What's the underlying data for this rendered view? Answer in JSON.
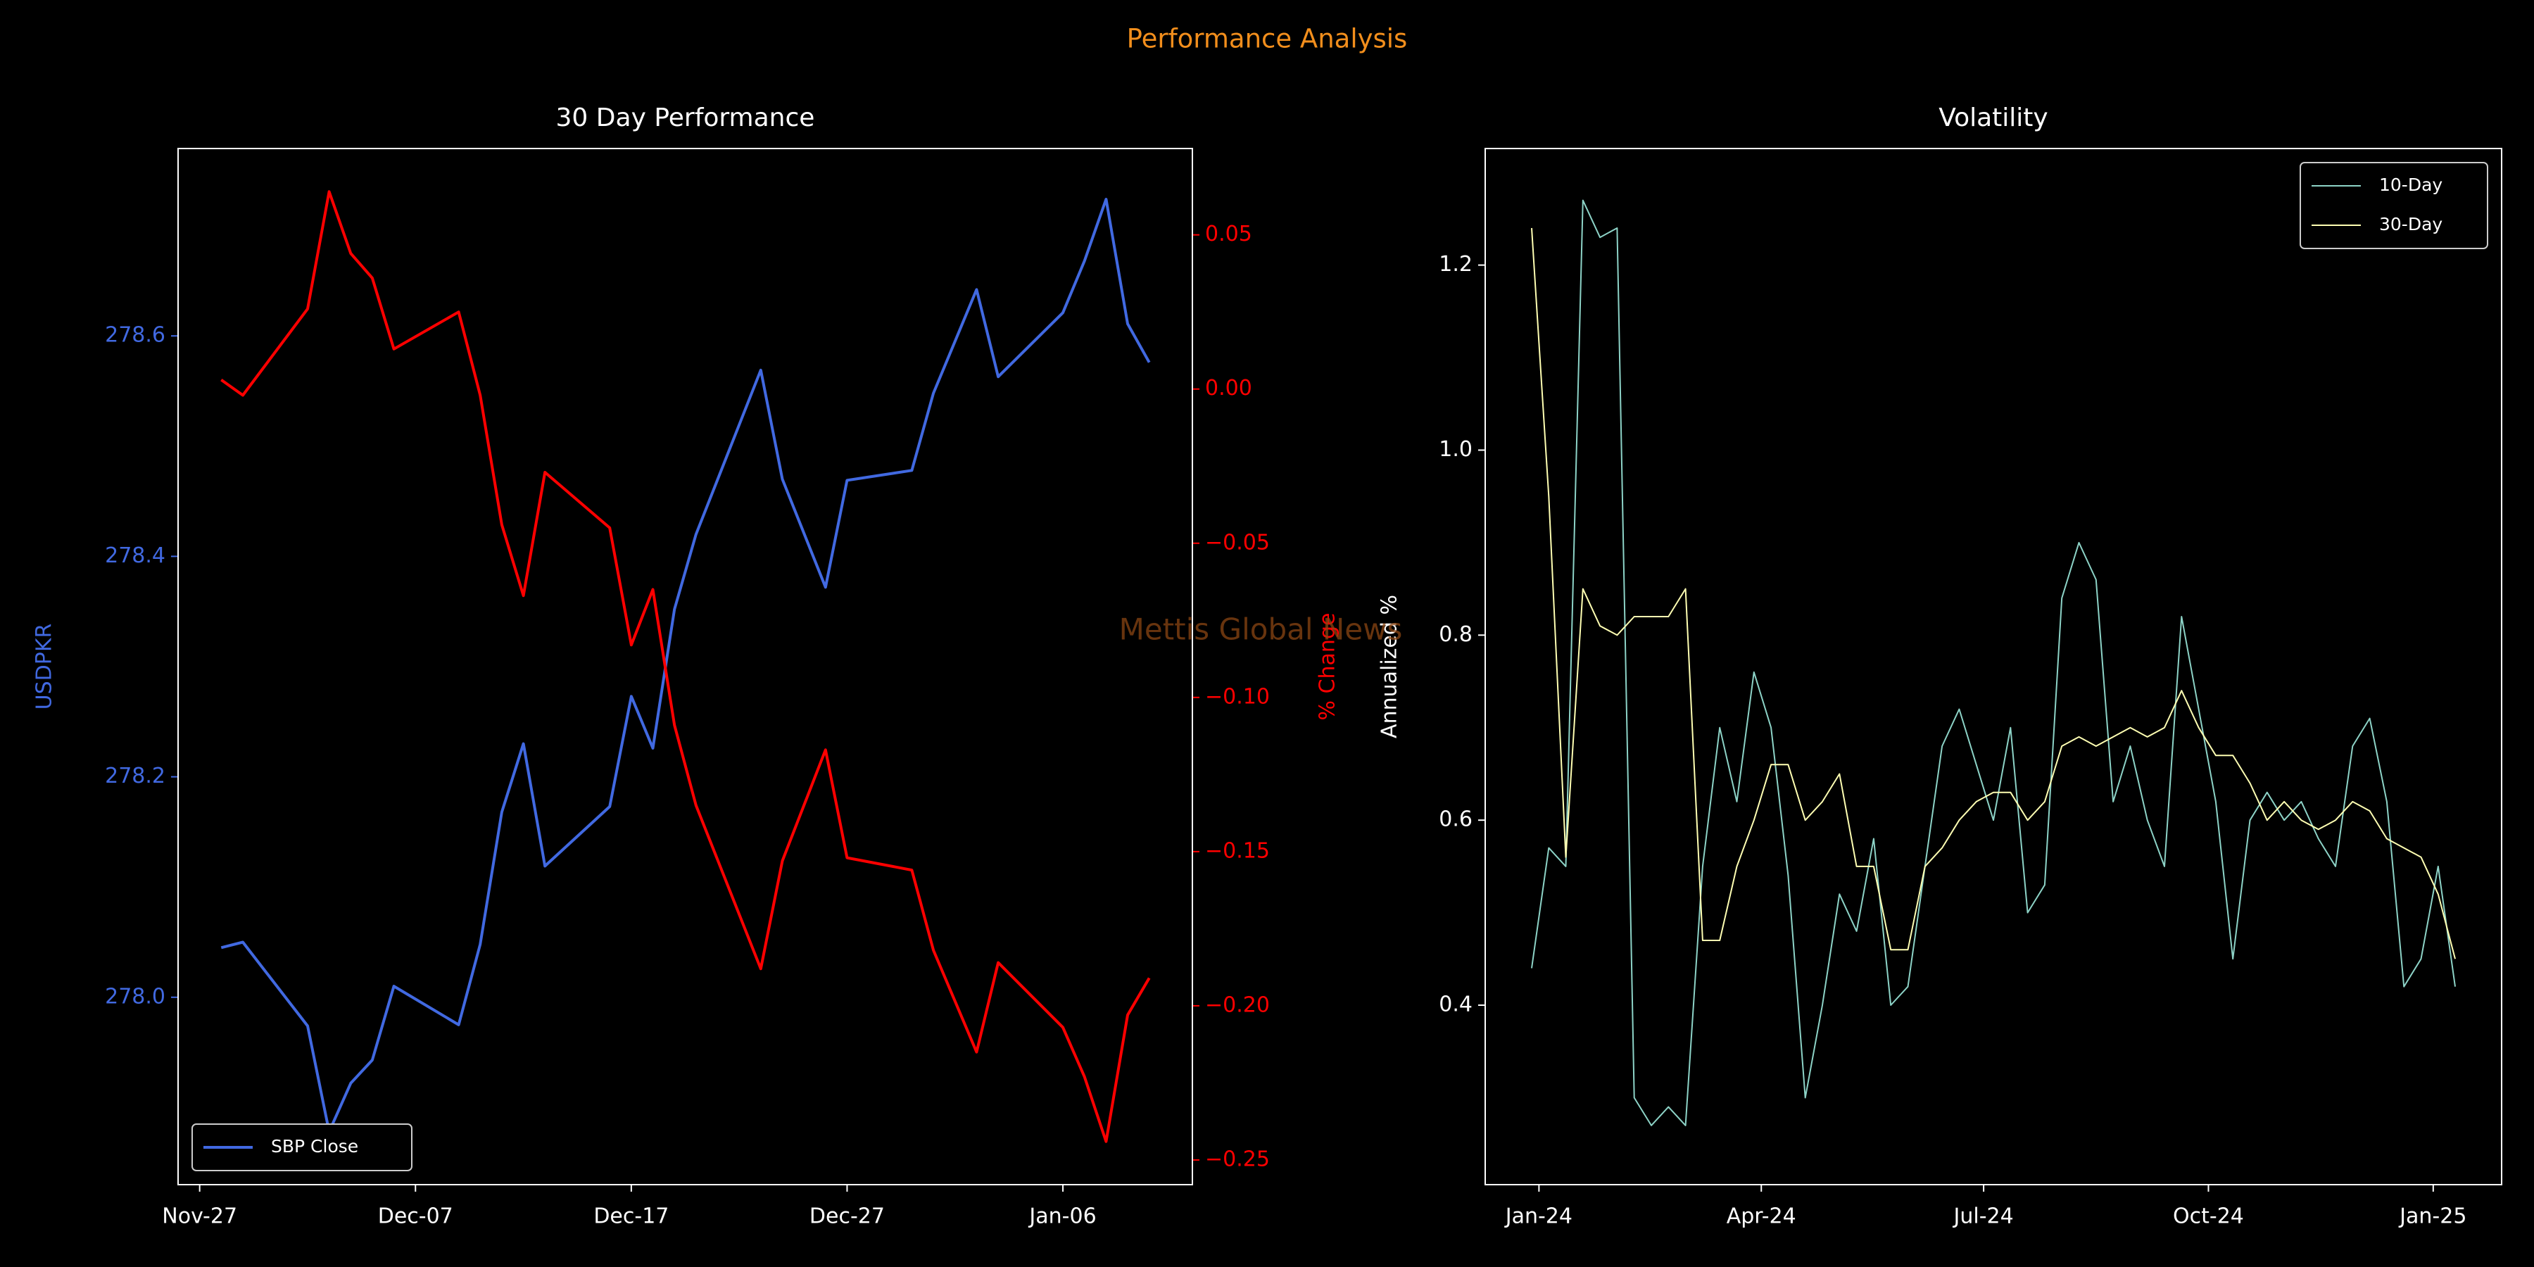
{
  "title": "Performance Analysis",
  "watermark": "Mettis Global News",
  "chart_data": [
    {
      "type": "line",
      "title": "30 Day Performance",
      "ylabel": "USDPKR",
      "y2label": "% Change",
      "legend": "lower left",
      "x": [
        "Nov-28",
        "Nov-29",
        "Dec-02",
        "Dec-03",
        "Dec-04",
        "Dec-05",
        "Dec-06",
        "Dec-09",
        "Dec-10",
        "Dec-11",
        "Dec-12",
        "Dec-13",
        "Dec-16",
        "Dec-17",
        "Dec-18",
        "Dec-19",
        "Dec-20",
        "Dec-23",
        "Dec-24",
        "Dec-26",
        "Dec-27",
        "Dec-30",
        "Dec-31",
        "Jan-02",
        "Jan-03",
        "Jan-06",
        "Jan-07",
        "Jan-08",
        "Jan-09",
        "Jan-10"
      ],
      "series": [
        {
          "name": "SBP Close",
          "color": "#4169e1",
          "values": [
            278.045,
            278.05,
            277.974,
            277.878,
            277.922,
            277.943,
            278.01,
            277.975,
            278.048,
            278.168,
            278.23,
            278.119,
            278.173,
            278.273,
            278.226,
            278.352,
            278.42,
            278.569,
            278.47,
            278.372,
            278.469,
            278.478,
            278.548,
            278.642,
            278.563,
            278.621,
            278.668,
            278.724,
            278.611,
            278.576
          ]
        },
        {
          "color": "#ff0000",
          "axis": "y2",
          "values": [
            0.003,
            -0.002,
            0.026,
            0.064,
            0.044,
            0.036,
            0.013,
            0.025,
            -0.002,
            -0.044,
            -0.067,
            -0.027,
            -0.045,
            -0.083,
            -0.065,
            -0.109,
            -0.135,
            -0.188,
            -0.153,
            -0.117,
            -0.152,
            -0.156,
            -0.182,
            -0.215,
            -0.186,
            -0.207,
            -0.223,
            -0.244,
            -0.203,
            -0.191
          ]
        }
      ],
      "xlim": [
        "Nov-26",
        "Jan-12"
      ],
      "xticks": [
        "Nov-27",
        "Dec-07",
        "Dec-17",
        "Dec-27",
        "Jan-06"
      ],
      "ylim": [
        277.83,
        278.77
      ],
      "yticks": [
        {
          "value": 278,
          "label": "278.0"
        },
        278.2,
        278.4,
        278.6
      ],
      "ycolor": "#4169e1",
      "y2lim": [
        -0.258,
        0.078
      ],
      "y2ticks": [
        {
          "value": -0.25,
          "label": "−0.25"
        },
        {
          "value": -0.2,
          "label": "−0.20"
        },
        {
          "value": -0.15,
          "label": "−0.15"
        },
        {
          "value": -0.1,
          "label": "−0.10"
        },
        {
          "value": -0.05,
          "label": "−0.05"
        },
        {
          "value": 0,
          "label": "0.00"
        },
        0.05
      ],
      "y2color": "#ff0000"
    },
    {
      "type": "line",
      "title": "Volatility",
      "ylabel": "Annualized %",
      "legend": "upper right",
      "x": [
        "2023-12-29",
        "2024-01-05",
        "2024-01-12",
        "2024-01-19",
        "2024-01-26",
        "2024-02-02",
        "2024-02-09",
        "2024-02-16",
        "2024-02-23",
        "2024-03-01",
        "2024-03-08",
        "2024-03-15",
        "2024-03-22",
        "2024-03-29",
        "2024-04-05",
        "2024-04-12",
        "2024-04-19",
        "2024-04-26",
        "2024-05-03",
        "2024-05-10",
        "2024-05-17",
        "2024-05-24",
        "2024-05-31",
        "2024-06-07",
        "2024-06-14",
        "2024-06-21",
        "2024-06-28",
        "2024-07-05",
        "2024-07-12",
        "2024-07-19",
        "2024-07-26",
        "2024-08-02",
        "2024-08-09",
        "2024-08-16",
        "2024-08-23",
        "2024-08-30",
        "2024-09-06",
        "2024-09-13",
        "2024-09-20",
        "2024-09-27",
        "2024-10-04",
        "2024-10-11",
        "2024-10-18",
        "2024-10-25",
        "2024-11-01",
        "2024-11-08",
        "2024-11-15",
        "2024-11-22",
        "2024-11-29",
        "2024-12-06",
        "2024-12-13",
        "2024-12-20",
        "2024-12-27",
        "2025-01-03",
        "2025-01-10"
      ],
      "series": [
        {
          "name": "10-Day",
          "color": "#8dd3c7",
          "values": [
            0.44,
            0.57,
            0.55,
            1.27,
            1.23,
            1.24,
            0.3,
            0.27,
            0.29,
            0.27,
            0.55,
            0.7,
            0.62,
            0.76,
            0.7,
            0.54,
            0.3,
            0.4,
            0.52,
            0.48,
            0.58,
            0.4,
            0.42,
            0.55,
            0.68,
            0.72,
            0.66,
            0.6,
            0.7,
            0.5,
            0.53,
            0.84,
            0.9,
            0.86,
            0.62,
            0.68,
            0.6,
            0.55,
            0.82,
            0.72,
            0.62,
            0.45,
            0.6,
            0.63,
            0.6,
            0.62,
            0.58,
            0.55,
            0.68,
            0.71,
            0.62,
            0.42,
            0.45,
            0.55,
            0.42
          ]
        },
        {
          "name": "30-Day",
          "color": "#ffffb3",
          "values": [
            1.24,
            0.95,
            0.56,
            0.85,
            0.81,
            0.8,
            0.82,
            0.82,
            0.82,
            0.85,
            0.47,
            0.47,
            0.55,
            0.6,
            0.66,
            0.66,
            0.6,
            0.62,
            0.65,
            0.55,
            0.55,
            0.46,
            0.46,
            0.55,
            0.57,
            0.6,
            0.62,
            0.63,
            0.63,
            0.6,
            0.62,
            0.68,
            0.69,
            0.68,
            0.69,
            0.7,
            0.69,
            0.7,
            0.74,
            0.7,
            0.67,
            0.67,
            0.64,
            0.6,
            0.62,
            0.6,
            0.59,
            0.6,
            0.62,
            0.61,
            0.58,
            0.57,
            0.56,
            0.52,
            0.45
          ]
        }
      ],
      "xlim": [
        "2023-12-10",
        "2025-01-29"
      ],
      "xticks": [
        {
          "value": "2024-01-01",
          "label": "Jan-24"
        },
        {
          "value": "2024-04-01",
          "label": "Apr-24"
        },
        {
          "value": "2024-07-01",
          "label": "Jul-24"
        },
        {
          "value": "2024-10-01",
          "label": "Oct-24"
        },
        {
          "value": "2025-01-01",
          "label": "Jan-25"
        }
      ],
      "ylim": [
        0.206,
        1.326
      ],
      "yticks": [
        0.4,
        0.6,
        0.8,
        {
          "value": 1,
          "label": "1.0"
        },
        1.2
      ]
    }
  ]
}
